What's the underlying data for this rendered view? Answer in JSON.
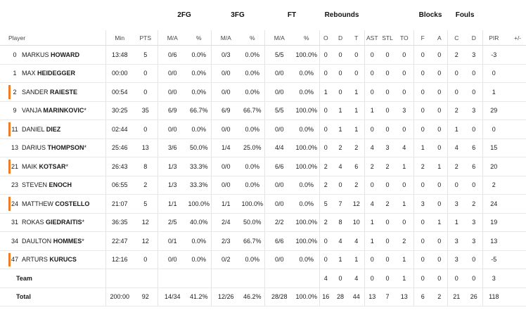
{
  "groups": {
    "fg2": "2FG",
    "fg3": "3FG",
    "ft": "FT",
    "reb": "Rebounds",
    "blk": "Blocks",
    "fouls": "Fouls"
  },
  "headers": {
    "player": "Player",
    "min": "Min",
    "pts": "PTS",
    "fg2_ma": "M/A",
    "fg2_pct": "%",
    "fg3_ma": "M/A",
    "fg3_pct": "%",
    "ft_ma": "M/A",
    "ft_pct": "%",
    "o": "O",
    "d": "D",
    "t": "T",
    "ast": "AST",
    "stl": "STL",
    "to": "TO",
    "bf": "F",
    "ba": "A",
    "fc": "C",
    "fd": "D",
    "pir": "PIR",
    "pm": "+/-"
  },
  "accent_color": "#f07d26",
  "players": [
    {
      "num": "0",
      "first": "MARKUS",
      "last": "HOWARD",
      "starter": "",
      "marked": false,
      "min": "13:48",
      "pts": "5",
      "fg2": "0/6",
      "fg2p": "0.0%",
      "fg3": "0/3",
      "fg3p": "0.0%",
      "ft": "5/5",
      "ftp": "100.0%",
      "o": "0",
      "d": "0",
      "t": "0",
      "ast": "0",
      "stl": "0",
      "to": "0",
      "bf": "0",
      "ba": "0",
      "fc": "2",
      "fd": "3",
      "pir": "-3",
      "pm": ""
    },
    {
      "num": "1",
      "first": "MAX",
      "last": "HEIDEGGER",
      "starter": "",
      "marked": false,
      "min": "00:00",
      "pts": "0",
      "fg2": "0/0",
      "fg2p": "0.0%",
      "fg3": "0/0",
      "fg3p": "0.0%",
      "ft": "0/0",
      "ftp": "0.0%",
      "o": "0",
      "d": "0",
      "t": "0",
      "ast": "0",
      "stl": "0",
      "to": "0",
      "bf": "0",
      "ba": "0",
      "fc": "0",
      "fd": "0",
      "pir": "0",
      "pm": ""
    },
    {
      "num": "2",
      "first": "SANDER",
      "last": "RAIESTE",
      "starter": "",
      "marked": true,
      "min": "00:54",
      "pts": "0",
      "fg2": "0/0",
      "fg2p": "0.0%",
      "fg3": "0/0",
      "fg3p": "0.0%",
      "ft": "0/0",
      "ftp": "0.0%",
      "o": "1",
      "d": "0",
      "t": "1",
      "ast": "0",
      "stl": "0",
      "to": "0",
      "bf": "0",
      "ba": "0",
      "fc": "0",
      "fd": "0",
      "pir": "1",
      "pm": ""
    },
    {
      "num": "9",
      "first": "VANJA",
      "last": "MARINKOVIC",
      "starter": "*",
      "marked": false,
      "min": "30:25",
      "pts": "35",
      "fg2": "6/9",
      "fg2p": "66.7%",
      "fg3": "6/9",
      "fg3p": "66.7%",
      "ft": "5/5",
      "ftp": "100.0%",
      "o": "0",
      "d": "1",
      "t": "1",
      "ast": "1",
      "stl": "0",
      "to": "3",
      "bf": "0",
      "ba": "0",
      "fc": "2",
      "fd": "3",
      "pir": "29",
      "pm": ""
    },
    {
      "num": "11",
      "first": "DANIEL",
      "last": "DIEZ",
      "starter": "",
      "marked": true,
      "min": "02:44",
      "pts": "0",
      "fg2": "0/0",
      "fg2p": "0.0%",
      "fg3": "0/0",
      "fg3p": "0.0%",
      "ft": "0/0",
      "ftp": "0.0%",
      "o": "0",
      "d": "1",
      "t": "1",
      "ast": "0",
      "stl": "0",
      "to": "0",
      "bf": "0",
      "ba": "0",
      "fc": "1",
      "fd": "0",
      "pir": "0",
      "pm": ""
    },
    {
      "num": "13",
      "first": "DARIUS",
      "last": "THOMPSON",
      "starter": "*",
      "marked": false,
      "min": "25:46",
      "pts": "13",
      "fg2": "3/6",
      "fg2p": "50.0%",
      "fg3": "1/4",
      "fg3p": "25.0%",
      "ft": "4/4",
      "ftp": "100.0%",
      "o": "0",
      "d": "2",
      "t": "2",
      "ast": "4",
      "stl": "3",
      "to": "4",
      "bf": "1",
      "ba": "0",
      "fc": "4",
      "fd": "6",
      "pir": "15",
      "pm": ""
    },
    {
      "num": "21",
      "first": "MAIK",
      "last": "KOTSAR",
      "starter": "*",
      "marked": true,
      "min": "26:43",
      "pts": "8",
      "fg2": "1/3",
      "fg2p": "33.3%",
      "fg3": "0/0",
      "fg3p": "0.0%",
      "ft": "6/6",
      "ftp": "100.0%",
      "o": "2",
      "d": "4",
      "t": "6",
      "ast": "2",
      "stl": "2",
      "to": "1",
      "bf": "2",
      "ba": "1",
      "fc": "2",
      "fd": "6",
      "pir": "20",
      "pm": ""
    },
    {
      "num": "23",
      "first": "STEVEN",
      "last": "ENOCH",
      "starter": "",
      "marked": false,
      "min": "06:55",
      "pts": "2",
      "fg2": "1/3",
      "fg2p": "33.3%",
      "fg3": "0/0",
      "fg3p": "0.0%",
      "ft": "0/0",
      "ftp": "0.0%",
      "o": "2",
      "d": "0",
      "t": "2",
      "ast": "0",
      "stl": "0",
      "to": "0",
      "bf": "0",
      "ba": "0",
      "fc": "0",
      "fd": "0",
      "pir": "2",
      "pm": ""
    },
    {
      "num": "24",
      "first": "MATTHEW",
      "last": "COSTELLO",
      "starter": "",
      "marked": true,
      "min": "21:07",
      "pts": "5",
      "fg2": "1/1",
      "fg2p": "100.0%",
      "fg3": "1/1",
      "fg3p": "100.0%",
      "ft": "0/0",
      "ftp": "0.0%",
      "o": "5",
      "d": "7",
      "t": "12",
      "ast": "4",
      "stl": "2",
      "to": "1",
      "bf": "3",
      "ba": "0",
      "fc": "3",
      "fd": "2",
      "pir": "24",
      "pm": ""
    },
    {
      "num": "31",
      "first": "ROKAS",
      "last": "GIEDRAITIS",
      "starter": "*",
      "marked": false,
      "min": "36:35",
      "pts": "12",
      "fg2": "2/5",
      "fg2p": "40.0%",
      "fg3": "2/4",
      "fg3p": "50.0%",
      "ft": "2/2",
      "ftp": "100.0%",
      "o": "2",
      "d": "8",
      "t": "10",
      "ast": "1",
      "stl": "0",
      "to": "0",
      "bf": "0",
      "ba": "1",
      "fc": "1",
      "fd": "3",
      "pir": "19",
      "pm": ""
    },
    {
      "num": "34",
      "first": "DAULTON",
      "last": "HOMMES",
      "starter": "*",
      "marked": false,
      "min": "22:47",
      "pts": "12",
      "fg2": "0/1",
      "fg2p": "0.0%",
      "fg3": "2/3",
      "fg3p": "66.7%",
      "ft": "6/6",
      "ftp": "100.0%",
      "o": "0",
      "d": "4",
      "t": "4",
      "ast": "1",
      "stl": "0",
      "to": "2",
      "bf": "0",
      "ba": "0",
      "fc": "3",
      "fd": "3",
      "pir": "13",
      "pm": ""
    },
    {
      "num": "47",
      "first": "ARTURS",
      "last": "KURUCS",
      "starter": "",
      "marked": true,
      "min": "12:16",
      "pts": "0",
      "fg2": "0/0",
      "fg2p": "0.0%",
      "fg3": "0/2",
      "fg3p": "0.0%",
      "ft": "0/0",
      "ftp": "0.0%",
      "o": "0",
      "d": "1",
      "t": "1",
      "ast": "0",
      "stl": "0",
      "to": "1",
      "bf": "0",
      "ba": "0",
      "fc": "3",
      "fd": "0",
      "pir": "-5",
      "pm": ""
    }
  ],
  "team": {
    "label": "Team",
    "o": "4",
    "d": "0",
    "t": "4",
    "ast": "0",
    "stl": "0",
    "to": "1",
    "bf": "0",
    "ba": "0",
    "fc": "0",
    "fd": "0",
    "pir": "3"
  },
  "total": {
    "label": "Total",
    "min": "200:00",
    "pts": "92",
    "fg2": "14/34",
    "fg2p": "41.2%",
    "fg3": "12/26",
    "fg3p": "46.2%",
    "ft": "28/28",
    "ftp": "100.0%",
    "o": "16",
    "d": "28",
    "t": "44",
    "ast": "13",
    "stl": "7",
    "to": "13",
    "bf": "6",
    "ba": "2",
    "fc": "21",
    "fd": "26",
    "pir": "118",
    "pm": ""
  }
}
